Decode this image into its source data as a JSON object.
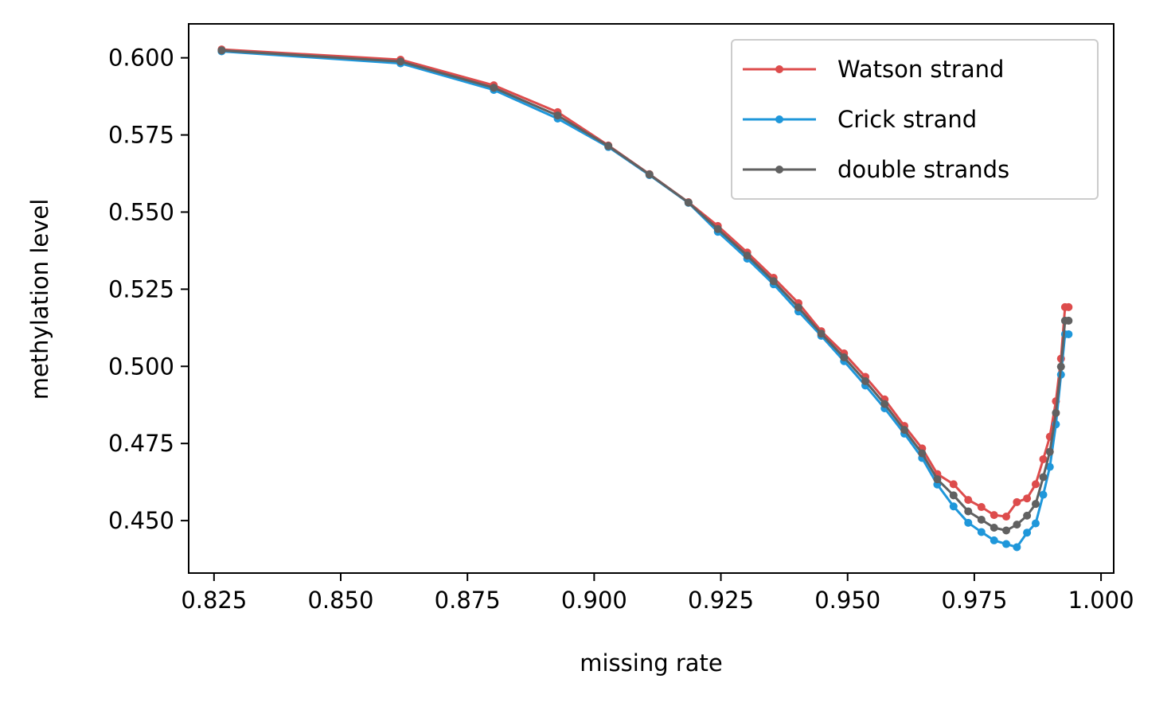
{
  "chart_data": {
    "type": "line",
    "title": "",
    "xlabel": "missing rate",
    "ylabel": "methylation level",
    "xlim": [
      0.82,
      1.0025
    ],
    "ylim": [
      0.433,
      0.611
    ],
    "xticks": [
      0.825,
      0.85,
      0.875,
      0.9,
      0.925,
      0.95,
      0.975,
      1.0
    ],
    "xtick_labels": [
      "0.825",
      "0.850",
      "0.875",
      "0.900",
      "0.925",
      "0.950",
      "0.975",
      "1.000"
    ],
    "yticks": [
      0.45,
      0.475,
      0.5,
      0.525,
      0.55,
      0.575,
      0.6
    ],
    "ytick_labels": [
      "0.450",
      "0.475",
      "0.500",
      "0.525",
      "0.550",
      "0.575",
      "0.600"
    ],
    "grid": false,
    "legend_position": "upper right",
    "x": [
      0.8265,
      0.8618,
      0.8802,
      0.8928,
      0.9028,
      0.9109,
      0.9186,
      0.9244,
      0.9302,
      0.9354,
      0.9403,
      0.9448,
      0.9493,
      0.9535,
      0.9573,
      0.9612,
      0.9647,
      0.9677,
      0.9709,
      0.9738,
      0.9764,
      0.9789,
      0.9813,
      0.9834,
      0.9854,
      0.9871,
      0.9886,
      0.9899,
      0.9911,
      0.9921,
      0.9929,
      0.9936
    ],
    "series": [
      {
        "name": "Watson strand",
        "color": "#dd4c4c",
        "values": [
          0.6027,
          0.5994,
          0.5911,
          0.5824,
          0.5716,
          0.5623,
          0.5532,
          0.5455,
          0.5369,
          0.5287,
          0.5205,
          0.5114,
          0.5042,
          0.4966,
          0.4893,
          0.4807,
          0.4734,
          0.4651,
          0.4618,
          0.4567,
          0.4544,
          0.4518,
          0.4513,
          0.456,
          0.4572,
          0.4618,
          0.4699,
          0.4772,
          0.4887,
          0.5025,
          0.5192,
          0.5192
        ]
      },
      {
        "name": "Crick strand",
        "color": "#1f97da",
        "values": [
          0.6021,
          0.5982,
          0.5896,
          0.5803,
          0.5711,
          0.562,
          0.553,
          0.5436,
          0.5349,
          0.5266,
          0.5178,
          0.5099,
          0.5017,
          0.4938,
          0.4864,
          0.4782,
          0.4703,
          0.4617,
          0.4546,
          0.4493,
          0.4463,
          0.4436,
          0.4424,
          0.4414,
          0.4461,
          0.4491,
          0.4584,
          0.4674,
          0.4812,
          0.4973,
          0.5104,
          0.5104
        ]
      },
      {
        "name": "double strands",
        "color": "#616161",
        "values": [
          0.6024,
          0.5988,
          0.5903,
          0.5813,
          0.5714,
          0.5622,
          0.5531,
          0.5445,
          0.5359,
          0.5276,
          0.5191,
          0.5106,
          0.5029,
          0.4952,
          0.4878,
          0.4794,
          0.4718,
          0.4634,
          0.4582,
          0.453,
          0.4503,
          0.4477,
          0.4468,
          0.4487,
          0.4516,
          0.4554,
          0.4641,
          0.4723,
          0.4849,
          0.4999,
          0.5148,
          0.5148
        ]
      }
    ]
  }
}
